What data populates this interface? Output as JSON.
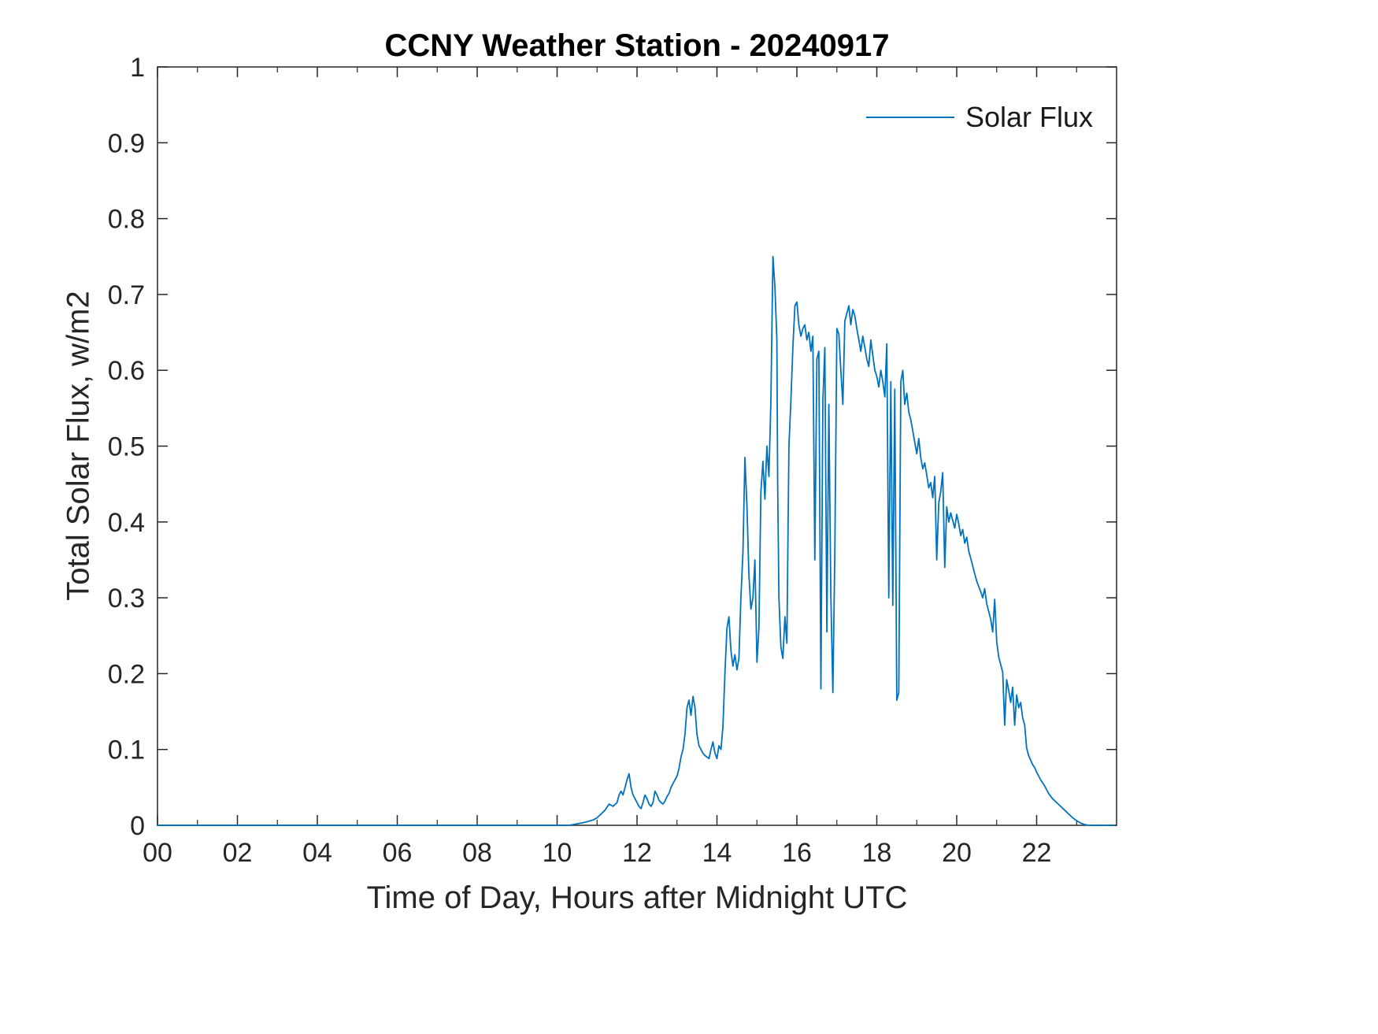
{
  "figure": {
    "background": "#ffffff",
    "axis_color": "#262626",
    "line_color": "#0072BD"
  },
  "chart_data": {
    "type": "line",
    "title": "CCNY Weather Station - 20240917",
    "xlabel": "Time of Day, Hours after Midnight UTC",
    "ylabel": "Total Solar Flux, w/m2",
    "xlim": [
      0,
      24
    ],
    "ylim": [
      0,
      1
    ],
    "xticks": [
      0,
      2,
      4,
      6,
      8,
      10,
      12,
      14,
      16,
      18,
      20,
      22
    ],
    "xtick_labels": [
      "00",
      "02",
      "04",
      "06",
      "08",
      "10",
      "12",
      "14",
      "16",
      "18",
      "20",
      "22"
    ],
    "x_minor_ticks": [
      1,
      3,
      5,
      7,
      9,
      11,
      13,
      15,
      17,
      19,
      21,
      23
    ],
    "yticks": [
      0,
      0.1,
      0.2,
      0.3,
      0.4,
      0.5,
      0.6,
      0.7,
      0.8,
      0.9,
      1
    ],
    "ytick_labels": [
      "0",
      "0.1",
      "0.2",
      "0.3",
      "0.4",
      "0.5",
      "0.6",
      "0.7",
      "0.8",
      "0.9",
      "1"
    ],
    "grid": false,
    "legend": {
      "position": "top-right",
      "entries": [
        {
          "label": "Solar Flux",
          "color": "#0072BD"
        }
      ]
    },
    "series": [
      {
        "name": "Solar Flux",
        "color": "#0072BD",
        "points": [
          [
            0,
            0
          ],
          [
            1,
            0
          ],
          [
            2,
            0
          ],
          [
            3,
            0
          ],
          [
            4,
            0
          ],
          [
            5,
            0
          ],
          [
            6,
            0
          ],
          [
            7,
            0
          ],
          [
            8,
            0
          ],
          [
            9,
            0
          ],
          [
            10,
            0
          ],
          [
            10.3,
            0
          ],
          [
            10.5,
            0.002
          ],
          [
            10.7,
            0.004
          ],
          [
            10.9,
            0.007
          ],
          [
            11.0,
            0.01
          ],
          [
            11.1,
            0.015
          ],
          [
            11.2,
            0.02
          ],
          [
            11.3,
            0.028
          ],
          [
            11.4,
            0.025
          ],
          [
            11.5,
            0.03
          ],
          [
            11.55,
            0.04
          ],
          [
            11.6,
            0.045
          ],
          [
            11.65,
            0.04
          ],
          [
            11.7,
            0.05
          ],
          [
            11.75,
            0.06
          ],
          [
            11.8,
            0.068
          ],
          [
            11.85,
            0.05
          ],
          [
            11.9,
            0.04
          ],
          [
            11.95,
            0.035
          ],
          [
            12.0,
            0.03
          ],
          [
            12.05,
            0.025
          ],
          [
            12.1,
            0.022
          ],
          [
            12.15,
            0.03
          ],
          [
            12.2,
            0.04
          ],
          [
            12.25,
            0.035
          ],
          [
            12.3,
            0.028
          ],
          [
            12.35,
            0.025
          ],
          [
            12.4,
            0.03
          ],
          [
            12.45,
            0.045
          ],
          [
            12.5,
            0.04
          ],
          [
            12.55,
            0.033
          ],
          [
            12.6,
            0.03
          ],
          [
            12.65,
            0.028
          ],
          [
            12.7,
            0.032
          ],
          [
            12.75,
            0.038
          ],
          [
            12.8,
            0.042
          ],
          [
            12.85,
            0.05
          ],
          [
            12.9,
            0.055
          ],
          [
            12.95,
            0.06
          ],
          [
            13.0,
            0.065
          ],
          [
            13.05,
            0.075
          ],
          [
            13.1,
            0.09
          ],
          [
            13.15,
            0.1
          ],
          [
            13.2,
            0.12
          ],
          [
            13.25,
            0.155
          ],
          [
            13.3,
            0.165
          ],
          [
            13.35,
            0.145
          ],
          [
            13.4,
            0.17
          ],
          [
            13.45,
            0.155
          ],
          [
            13.5,
            0.12
          ],
          [
            13.55,
            0.105
          ],
          [
            13.6,
            0.1
          ],
          [
            13.65,
            0.095
          ],
          [
            13.7,
            0.092
          ],
          [
            13.75,
            0.09
          ],
          [
            13.8,
            0.088
          ],
          [
            13.85,
            0.1
          ],
          [
            13.9,
            0.11
          ],
          [
            13.95,
            0.095
          ],
          [
            14.0,
            0.088
          ],
          [
            14.05,
            0.105
          ],
          [
            14.1,
            0.1
          ],
          [
            14.15,
            0.13
          ],
          [
            14.2,
            0.2
          ],
          [
            14.25,
            0.26
          ],
          [
            14.3,
            0.275
          ],
          [
            14.35,
            0.23
          ],
          [
            14.4,
            0.21
          ],
          [
            14.45,
            0.225
          ],
          [
            14.5,
            0.205
          ],
          [
            14.55,
            0.22
          ],
          [
            14.6,
            0.3
          ],
          [
            14.65,
            0.36
          ],
          [
            14.7,
            0.485
          ],
          [
            14.75,
            0.42
          ],
          [
            14.8,
            0.33
          ],
          [
            14.85,
            0.285
          ],
          [
            14.9,
            0.3
          ],
          [
            14.95,
            0.35
          ],
          [
            15.0,
            0.215
          ],
          [
            15.05,
            0.26
          ],
          [
            15.1,
            0.44
          ],
          [
            15.15,
            0.48
          ],
          [
            15.2,
            0.43
          ],
          [
            15.25,
            0.5
          ],
          [
            15.3,
            0.46
          ],
          [
            15.35,
            0.56
          ],
          [
            15.4,
            0.75
          ],
          [
            15.45,
            0.71
          ],
          [
            15.5,
            0.64
          ],
          [
            15.52,
            0.45
          ],
          [
            15.55,
            0.3
          ],
          [
            15.6,
            0.235
          ],
          [
            15.65,
            0.22
          ],
          [
            15.7,
            0.275
          ],
          [
            15.75,
            0.24
          ],
          [
            15.8,
            0.5
          ],
          [
            15.85,
            0.56
          ],
          [
            15.9,
            0.63
          ],
          [
            15.95,
            0.685
          ],
          [
            16.0,
            0.69
          ],
          [
            16.05,
            0.66
          ],
          [
            16.1,
            0.645
          ],
          [
            16.15,
            0.655
          ],
          [
            16.2,
            0.66
          ],
          [
            16.25,
            0.64
          ],
          [
            16.3,
            0.65
          ],
          [
            16.35,
            0.625
          ],
          [
            16.4,
            0.645
          ],
          [
            16.45,
            0.35
          ],
          [
            16.5,
            0.615
          ],
          [
            16.55,
            0.625
          ],
          [
            16.6,
            0.18
          ],
          [
            16.65,
            0.56
          ],
          [
            16.7,
            0.63
          ],
          [
            16.75,
            0.255
          ],
          [
            16.8,
            0.555
          ],
          [
            16.85,
            0.305
          ],
          [
            16.9,
            0.175
          ],
          [
            16.95,
            0.36
          ],
          [
            17.0,
            0.655
          ],
          [
            17.05,
            0.648
          ],
          [
            17.1,
            0.6
          ],
          [
            17.15,
            0.555
          ],
          [
            17.2,
            0.665
          ],
          [
            17.25,
            0.675
          ],
          [
            17.3,
            0.685
          ],
          [
            17.35,
            0.66
          ],
          [
            17.4,
            0.68
          ],
          [
            17.45,
            0.672
          ],
          [
            17.5,
            0.655
          ],
          [
            17.55,
            0.64
          ],
          [
            17.6,
            0.625
          ],
          [
            17.65,
            0.645
          ],
          [
            17.7,
            0.63
          ],
          [
            17.75,
            0.615
          ],
          [
            17.8,
            0.605
          ],
          [
            17.85,
            0.64
          ],
          [
            17.9,
            0.62
          ],
          [
            17.95,
            0.6
          ],
          [
            18.0,
            0.592
          ],
          [
            18.05,
            0.578
          ],
          [
            18.1,
            0.6
          ],
          [
            18.15,
            0.585
          ],
          [
            18.2,
            0.565
          ],
          [
            18.25,
            0.635
          ],
          [
            18.3,
            0.3
          ],
          [
            18.35,
            0.585
          ],
          [
            18.4,
            0.29
          ],
          [
            18.45,
            0.575
          ],
          [
            18.5,
            0.165
          ],
          [
            18.55,
            0.175
          ],
          [
            18.6,
            0.585
          ],
          [
            18.65,
            0.6
          ],
          [
            18.7,
            0.555
          ],
          [
            18.75,
            0.57
          ],
          [
            18.8,
            0.545
          ],
          [
            18.85,
            0.535
          ],
          [
            18.9,
            0.52
          ],
          [
            18.95,
            0.505
          ],
          [
            19.0,
            0.49
          ],
          [
            19.05,
            0.51
          ],
          [
            19.1,
            0.485
          ],
          [
            19.15,
            0.47
          ],
          [
            19.2,
            0.478
          ],
          [
            19.25,
            0.462
          ],
          [
            19.3,
            0.445
          ],
          [
            19.35,
            0.452
          ],
          [
            19.4,
            0.432
          ],
          [
            19.45,
            0.46
          ],
          [
            19.5,
            0.35
          ],
          [
            19.55,
            0.425
          ],
          [
            19.6,
            0.44
          ],
          [
            19.65,
            0.465
          ],
          [
            19.7,
            0.34
          ],
          [
            19.75,
            0.42
          ],
          [
            19.8,
            0.4
          ],
          [
            19.85,
            0.412
          ],
          [
            19.9,
            0.402
          ],
          [
            19.95,
            0.392
          ],
          [
            20.0,
            0.41
          ],
          [
            20.05,
            0.398
          ],
          [
            20.1,
            0.382
          ],
          [
            20.15,
            0.39
          ],
          [
            20.2,
            0.372
          ],
          [
            20.25,
            0.38
          ],
          [
            20.3,
            0.362
          ],
          [
            20.35,
            0.352
          ],
          [
            20.4,
            0.342
          ],
          [
            20.45,
            0.332
          ],
          [
            20.5,
            0.322
          ],
          [
            20.55,
            0.315
          ],
          [
            20.6,
            0.308
          ],
          [
            20.65,
            0.3
          ],
          [
            20.7,
            0.312
          ],
          [
            20.75,
            0.292
          ],
          [
            20.8,
            0.282
          ],
          [
            20.85,
            0.272
          ],
          [
            20.9,
            0.255
          ],
          [
            20.95,
            0.298
          ],
          [
            21.0,
            0.242
          ],
          [
            21.05,
            0.222
          ],
          [
            21.1,
            0.212
          ],
          [
            21.15,
            0.202
          ],
          [
            21.2,
            0.132
          ],
          [
            21.25,
            0.192
          ],
          [
            21.3,
            0.178
          ],
          [
            21.35,
            0.162
          ],
          [
            21.4,
            0.182
          ],
          [
            21.45,
            0.132
          ],
          [
            21.5,
            0.172
          ],
          [
            21.55,
            0.155
          ],
          [
            21.6,
            0.162
          ],
          [
            21.65,
            0.142
          ],
          [
            21.7,
            0.132
          ],
          [
            21.75,
            0.102
          ],
          [
            21.8,
            0.092
          ],
          [
            21.85,
            0.086
          ],
          [
            21.9,
            0.08
          ],
          [
            21.95,
            0.076
          ],
          [
            22.0,
            0.07
          ],
          [
            22.1,
            0.06
          ],
          [
            22.2,
            0.052
          ],
          [
            22.3,
            0.042
          ],
          [
            22.4,
            0.035
          ],
          [
            22.5,
            0.03
          ],
          [
            22.6,
            0.025
          ],
          [
            22.7,
            0.02
          ],
          [
            22.8,
            0.015
          ],
          [
            22.9,
            0.01
          ],
          [
            23.0,
            0.006
          ],
          [
            23.1,
            0.003
          ],
          [
            23.2,
            0.001
          ],
          [
            23.3,
            0
          ],
          [
            23.6,
            0
          ],
          [
            23.95,
            0
          ]
        ]
      }
    ]
  }
}
